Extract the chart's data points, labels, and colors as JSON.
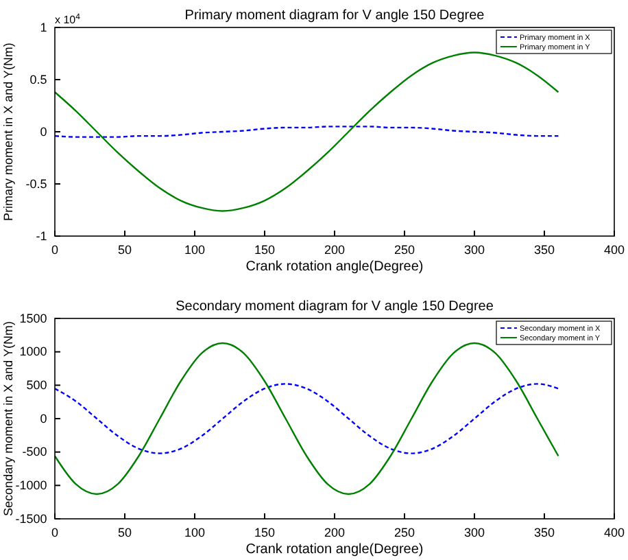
{
  "chart_data": [
    {
      "type": "line",
      "title": "Primary moment diagram for V angle 150 Degree",
      "xlabel": "Crank rotation angle(Degree)",
      "ylabel": "Primary moment in X and Y(Nm)",
      "annotations": [
        "x 10$^{4}$"
      ],
      "x": [
        0,
        15,
        30,
        45,
        60,
        75,
        90,
        105,
        120,
        135,
        150,
        165,
        180,
        195,
        210,
        225,
        240,
        255,
        270,
        285,
        300,
        315,
        330,
        345,
        360
      ],
      "xlim": [
        0,
        400
      ],
      "xticks": [
        0,
        50,
        100,
        150,
        200,
        250,
        300,
        350,
        400
      ],
      "ylim": [
        -1,
        1
      ],
      "yticks": [
        -1,
        -0.5,
        0,
        0.5,
        1
      ],
      "legend": "top right",
      "grid": false,
      "series": [
        {
          "name": "Primary moment in X",
          "color": "#0000ff",
          "line_style": "dashed",
          "values": [
            -0.04,
            -0.05,
            -0.05,
            -0.05,
            -0.04,
            -0.04,
            -0.03,
            -0.01,
            0,
            0.01,
            0.03,
            0.04,
            0.04,
            0.05,
            0.05,
            0.05,
            0.04,
            0.04,
            0.03,
            0.01,
            0,
            -0.01,
            -0.03,
            -0.04,
            -0.04
          ]
        },
        {
          "name": "Primary moment in Y",
          "color": "#008000",
          "line_style": "solid",
          "values": [
            0.38,
            0.2,
            0,
            -0.2,
            -0.38,
            -0.54,
            -0.66,
            -0.73,
            -0.76,
            -0.73,
            -0.66,
            -0.54,
            -0.38,
            -0.2,
            0,
            0.2,
            0.38,
            0.54,
            0.66,
            0.73,
            0.76,
            0.73,
            0.66,
            0.54,
            0.38
          ]
        }
      ]
    },
    {
      "type": "line",
      "title": "Secondary moment diagram for V angle 150 Degree",
      "xlabel": "Crank rotation angle(Degree)",
      "ylabel": "Secondary moment in X and Y(Nm)",
      "x": [
        0,
        15,
        30,
        45,
        60,
        75,
        90,
        105,
        120,
        135,
        150,
        165,
        180,
        195,
        210,
        225,
        240,
        255,
        270,
        285,
        300,
        315,
        330,
        345,
        360
      ],
      "xlim": [
        0,
        400
      ],
      "xticks": [
        0,
        50,
        100,
        150,
        200,
        250,
        300,
        350,
        400
      ],
      "ylim": [
        -1500,
        1500
      ],
      "yticks": [
        -1500,
        -1000,
        -500,
        0,
        500,
        1000,
        1500
      ],
      "legend": "top right",
      "grid": false,
      "series": [
        {
          "name": "Secondary moment in X",
          "color": "#0000ff",
          "line_style": "dashed",
          "values": [
            450,
            260,
            0,
            -260,
            -450,
            -520,
            -450,
            -260,
            0,
            260,
            450,
            520,
            450,
            260,
            0,
            -260,
            -450,
            -520,
            -450,
            -260,
            0,
            260,
            450,
            520,
            450
          ]
        },
        {
          "name": "Secondary moment in Y",
          "color": "#008000",
          "line_style": "solid",
          "values": [
            -560,
            -980,
            -1130,
            -980,
            -560,
            0,
            560,
            980,
            1130,
            980,
            560,
            0,
            -560,
            -980,
            -1130,
            -980,
            -560,
            0,
            560,
            980,
            1130,
            980,
            560,
            0,
            -560
          ]
        }
      ]
    }
  ]
}
